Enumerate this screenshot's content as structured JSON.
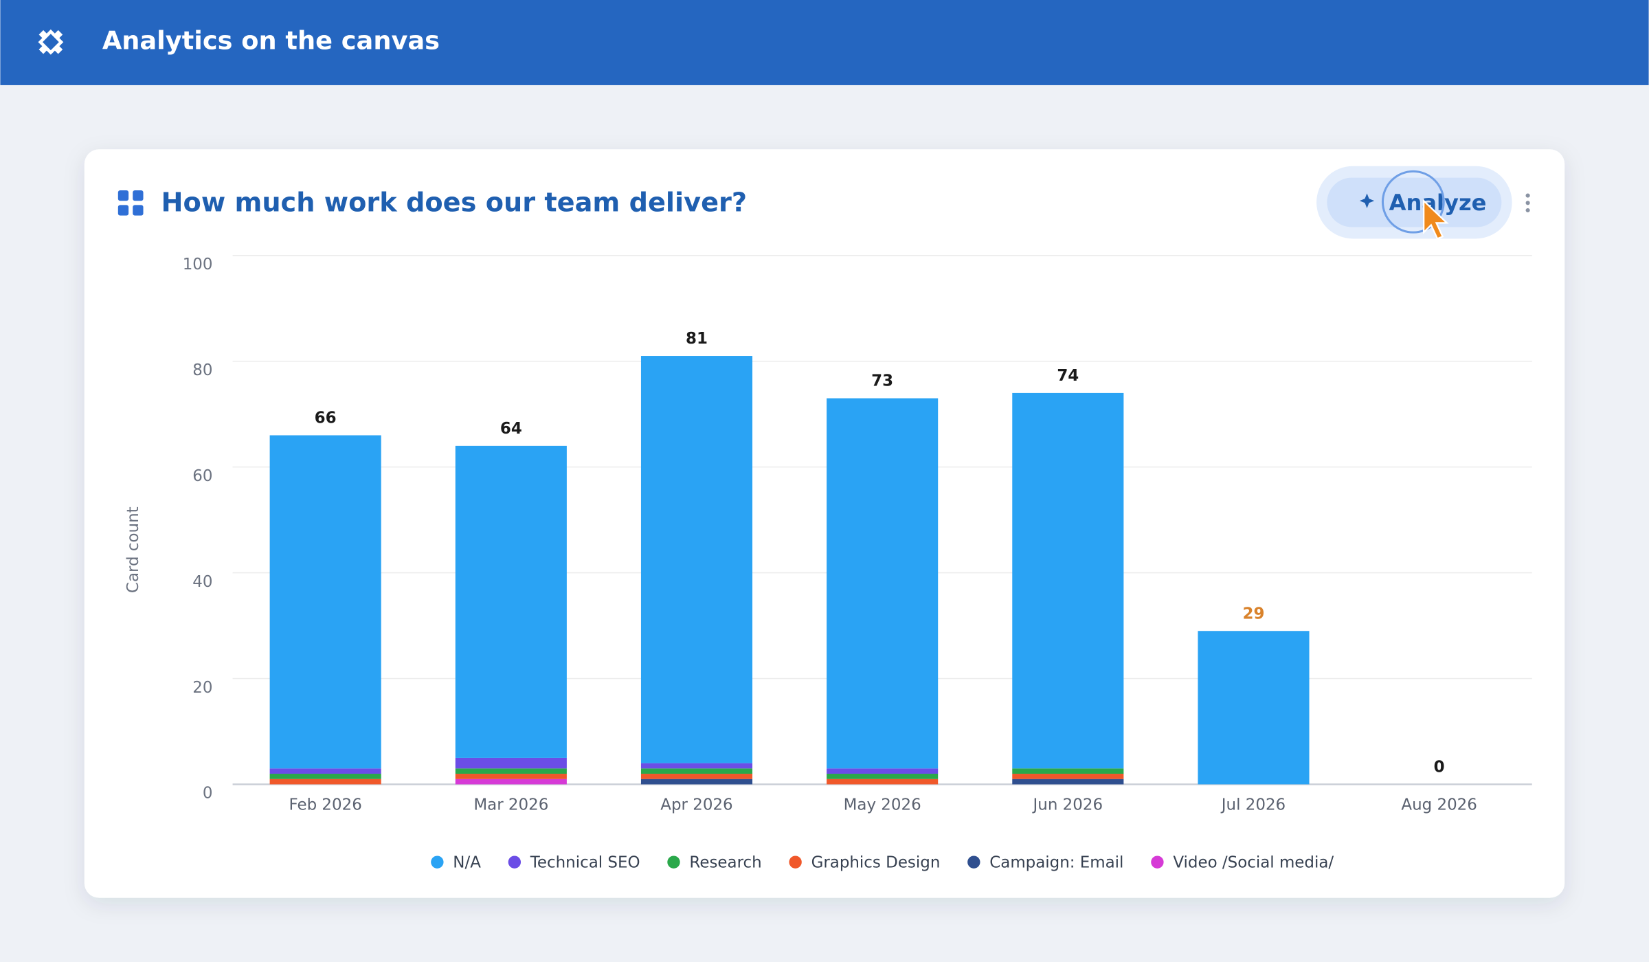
{
  "header": {
    "title": "Analytics on the canvas"
  },
  "card": {
    "title": "How much work does our team deliver?",
    "button": "Analyze"
  },
  "chart_data": {
    "type": "stacked_bar",
    "y_label": "Card count",
    "categories": [
      "Feb 2026",
      "Mar 2026",
      "Apr 2026",
      "May 2026",
      "Jun 2026",
      "Jul 2026",
      "Aug 2026"
    ],
    "series": [
      {
        "name": "N/A",
        "color": "#2aa3f4",
        "values": [
          63,
          59,
          77,
          70,
          71,
          29,
          0
        ]
      },
      {
        "name": "Technical SEO",
        "color": "#6b4de6",
        "values": [
          1,
          2,
          1,
          1,
          0,
          0,
          0
        ]
      },
      {
        "name": "Research",
        "color": "#2aa84a",
        "values": [
          1,
          1,
          1,
          1,
          1,
          0,
          0
        ]
      },
      {
        "name": "Graphics Design",
        "color": "#f0582a",
        "values": [
          1,
          1,
          1,
          1,
          1,
          0,
          0
        ]
      },
      {
        "name": "Campaign: Email",
        "color": "#2f4f8f",
        "values": [
          0,
          0,
          1,
          0,
          1,
          0,
          0
        ]
      },
      {
        "name": "Video /Social media/",
        "color": "#d63ad6",
        "values": [
          0,
          1,
          0,
          0,
          0,
          0,
          0
        ]
      }
    ],
    "totals": [
      66,
      64,
      81,
      73,
      74,
      29,
      0
    ],
    "total_color": "#1a1a1a",
    "highlight": {
      "index": 5,
      "color": "#d9822b"
    },
    "ylim": [
      0,
      100
    ],
    "yticks": [
      0,
      20,
      40,
      60,
      80,
      100
    ],
    "grid": true
  }
}
